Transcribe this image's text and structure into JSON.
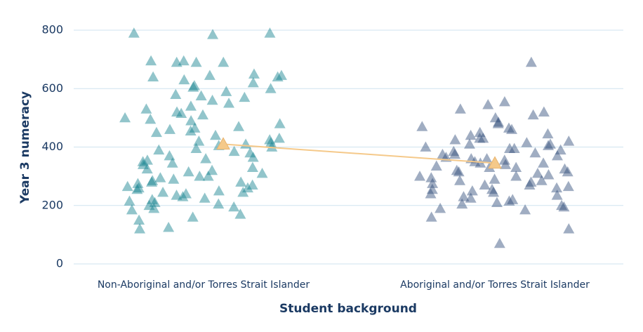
{
  "chart_data": {
    "type": "strip",
    "xlabel": "Student background",
    "ylabel": "Year 3 numeracy",
    "categories": [
      "Non-Aboriginal and/or Torres Strait Islander",
      "Aboriginal and/or Torres Strait Islander"
    ],
    "groups": [
      {
        "color": "#0e7f8c",
        "values": [
          790,
          790,
          785,
          695,
          690,
          690,
          695,
          690,
          645,
          640,
          650,
          640,
          645,
          620,
          610,
          600,
          605,
          590,
          580,
          570,
          560,
          550,
          540,
          530,
          520,
          510,
          500,
          495,
          490,
          480,
          470,
          460,
          455,
          450,
          440,
          430,
          425,
          420,
          410,
          405,
          400,
          395,
          390,
          385,
          380,
          370,
          360,
          355,
          350,
          345,
          340,
          330,
          320,
          315,
          310,
          300,
          295,
          290,
          285,
          280,
          275,
          270,
          265,
          260,
          255,
          250,
          245,
          240,
          235,
          230,
          225,
          220,
          215,
          210,
          205,
          200,
          195,
          190,
          185,
          170,
          160,
          150,
          125,
          120,
          630,
          575,
          515,
          465,
          415,
          365,
          325,
          300,
          280,
          260,
          245
        ]
      },
      {
        "color": "#2c4a78",
        "values": [
          690,
          555,
          545,
          530,
          520,
          510,
          500,
          485,
          480,
          470,
          465,
          460,
          450,
          445,
          440,
          430,
          425,
          420,
          415,
          410,
          405,
          400,
          395,
          390,
          385,
          380,
          375,
          370,
          365,
          360,
          355,
          350,
          345,
          340,
          335,
          330,
          325,
          320,
          315,
          310,
          305,
          300,
          295,
          290,
          285,
          280,
          275,
          270,
          265,
          260,
          255,
          250,
          245,
          240,
          235,
          230,
          225,
          220,
          215,
          210,
          205,
          200,
          195,
          190,
          185,
          160,
          120,
          70,
          430,
          395,
          360,
          330,
          300,
          270,
          410,
          375,
          345,
          315,
          285,
          255
        ]
      }
    ],
    "means": [
      410,
      345
    ],
    "mean_color": "#f5c98a",
    "ylim": [
      0,
      800
    ],
    "yticks": [
      0,
      200,
      400,
      600,
      800
    ],
    "grid": true
  }
}
